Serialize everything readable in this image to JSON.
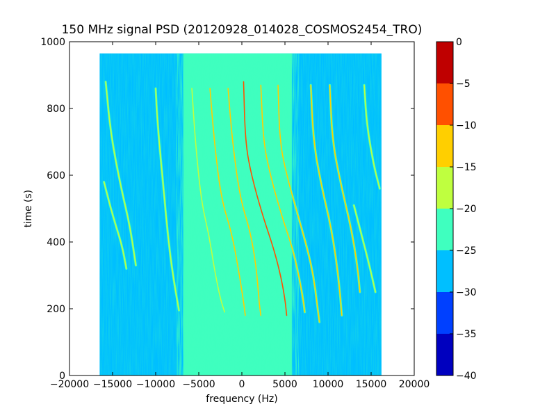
{
  "chart_data": {
    "type": "heatmap",
    "title": "150 MHz signal PSD (20120928_014028_COSMOS2454_TRO)",
    "xlabel": "frequency (Hz)",
    "ylabel": "time (s)",
    "xlim": [
      -20000,
      20000
    ],
    "ylim": [
      0,
      1000
    ],
    "x_ticks": [
      -20000,
      -15000,
      -10000,
      -5000,
      0,
      5000,
      10000,
      15000,
      20000
    ],
    "x_tick_labels": [
      "−20000",
      "−15000",
      "−10000",
      "−5000",
      "0",
      "5000",
      "10000",
      "15000",
      "20000"
    ],
    "y_ticks": [
      0,
      200,
      400,
      600,
      800,
      1000
    ],
    "y_tick_labels": [
      "0",
      "200",
      "400",
      "600",
      "800",
      "1000"
    ],
    "grid": false,
    "data_extent": {
      "x": [
        -16500,
        16200
      ],
      "y": [
        0,
        965
      ]
    },
    "colorbar": {
      "levels": [
        -40,
        -35,
        -30,
        -25,
        -20,
        -15,
        -10,
        -5,
        0
      ],
      "tick_labels": [
        "−40",
        "−35",
        "−30",
        "−25",
        "−20",
        "−15",
        "−10",
        "−5",
        "0"
      ],
      "colors": [
        "#0000bf",
        "#0040ff",
        "#00bfff",
        "#3fffbf",
        "#bfff3f",
        "#ffcf00",
        "#ff5000",
        "#bf0000"
      ]
    },
    "background_band": {
      "x": [
        -16500,
        16200
      ],
      "value_level": "-30 to -25"
    },
    "center_band": {
      "x": [
        -6800,
        5800
      ],
      "value_level": "-25 to -20"
    },
    "traces": [
      {
        "peak_level": "-20 to -15",
        "points": [
          [
            -15800,
            880
          ],
          [
            -15200,
            720
          ],
          [
            -14000,
            560
          ],
          [
            -13000,
            450
          ],
          [
            -12300,
            330
          ]
        ]
      },
      {
        "peak_level": "-20 to -15",
        "points": [
          [
            -16000,
            580
          ],
          [
            -15000,
            480
          ],
          [
            -13900,
            390
          ],
          [
            -13400,
            320
          ]
        ]
      },
      {
        "peak_level": "-20 to -15",
        "points": [
          [
            -10000,
            860
          ],
          [
            -9800,
            760
          ],
          [
            -9100,
            560
          ],
          [
            -8500,
            400
          ],
          [
            -8000,
            300
          ],
          [
            -7300,
            195
          ]
        ]
      },
      {
        "peak_level": "-20 to -15",
        "points": [
          [
            -5800,
            860
          ],
          [
            -5400,
            700
          ],
          [
            -4700,
            520
          ],
          [
            -3800,
            420
          ],
          [
            -3200,
            320
          ],
          [
            -2500,
            230
          ],
          [
            -2000,
            190
          ]
        ]
      },
      {
        "peak_level": "-15 to -10",
        "points": [
          [
            -3700,
            860
          ],
          [
            -3200,
            700
          ],
          [
            -2400,
            530
          ],
          [
            -1200,
            430
          ],
          [
            -400,
            320
          ],
          [
            200,
            220
          ],
          [
            400,
            180
          ]
        ]
      },
      {
        "peak_level": "-15 to -10",
        "points": [
          [
            -1600,
            860
          ],
          [
            -1100,
            700
          ],
          [
            -200,
            530
          ],
          [
            1000,
            430
          ],
          [
            1700,
            320
          ],
          [
            2000,
            220
          ],
          [
            2200,
            180
          ]
        ]
      },
      {
        "peak_level": "-10 to -5",
        "points": [
          [
            200,
            880
          ],
          [
            400,
            700
          ],
          [
            1100,
            600
          ],
          [
            2400,
            480
          ],
          [
            3700,
            380
          ],
          [
            4500,
            300
          ],
          [
            5000,
            230
          ],
          [
            5200,
            180
          ]
        ]
      },
      {
        "peak_level": "-15 to -10",
        "points": [
          [
            2200,
            870
          ],
          [
            2500,
            700
          ],
          [
            3300,
            600
          ],
          [
            4600,
            480
          ],
          [
            5900,
            380
          ],
          [
            6600,
            300
          ],
          [
            7100,
            230
          ],
          [
            7300,
            190
          ]
        ]
      },
      {
        "peak_level": "-15 to -10",
        "points": [
          [
            4200,
            870
          ],
          [
            4400,
            700
          ],
          [
            5200,
            600
          ],
          [
            6500,
            480
          ],
          [
            7600,
            380
          ],
          [
            8300,
            300
          ],
          [
            8700,
            220
          ],
          [
            9000,
            160
          ]
        ]
      },
      {
        "peak_level": "-15 to -10",
        "points": [
          [
            8000,
            870
          ],
          [
            8300,
            700
          ],
          [
            9300,
            560
          ],
          [
            10400,
            440
          ],
          [
            11200,
            300
          ],
          [
            11600,
            180
          ]
        ]
      },
      {
        "peak_level": "-15 to -10",
        "points": [
          [
            10200,
            870
          ],
          [
            10500,
            700
          ],
          [
            11600,
            560
          ],
          [
            12700,
            440
          ],
          [
            13400,
            330
          ],
          [
            13700,
            250
          ]
        ]
      },
      {
        "peak_level": "-20 to -15",
        "points": [
          [
            14200,
            870
          ],
          [
            14500,
            750
          ],
          [
            15300,
            630
          ],
          [
            16000,
            560
          ]
        ]
      },
      {
        "peak_level": "-20 to -15",
        "points": [
          [
            13000,
            510
          ],
          [
            13900,
            420
          ],
          [
            14800,
            330
          ],
          [
            15500,
            250
          ]
        ]
      }
    ]
  }
}
